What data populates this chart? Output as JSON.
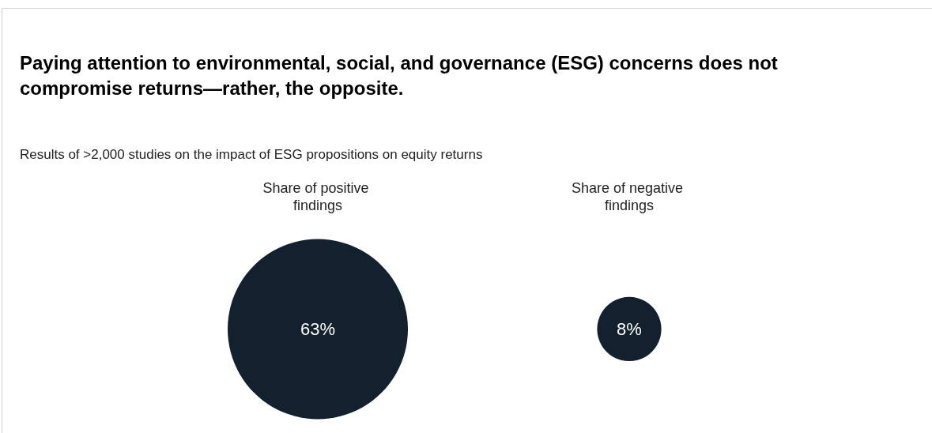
{
  "chart_data": {
    "type": "other",
    "title": "Paying attention to environmental, social, and governance (ESG) concerns does not compromise returns—rather, the opposite.",
    "subtitle": "Results of >2,000 studies on the impact of ESG propositions on equity returns",
    "categories": [
      "Share of positive findings",
      "Share of negative findings"
    ],
    "values": [
      63,
      8
    ],
    "value_labels": [
      "63%",
      "8%"
    ],
    "color": "#13212f"
  }
}
